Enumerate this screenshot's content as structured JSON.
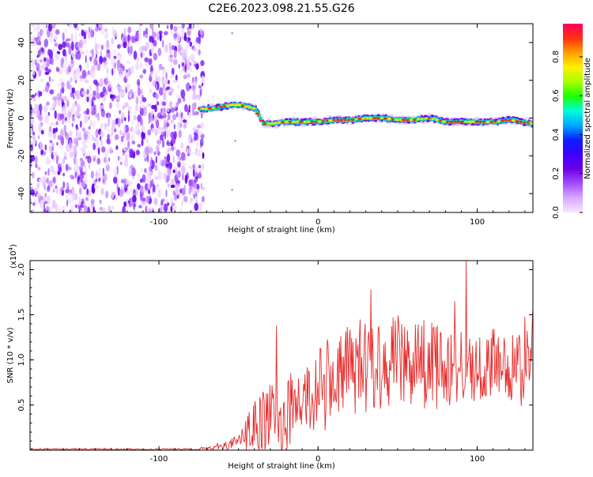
{
  "title": "C2E6.2023.098.21.55.G26",
  "colors": {
    "signal": "#7a1fe6",
    "snr_line": "#e82a2a",
    "colormap": [
      "#f7e6ff",
      "#d9a8ff",
      "#a24dff",
      "#6b00e8",
      "#3f00ff",
      "#0a20ff",
      "#00a8ff",
      "#00ffd8",
      "#1aff00",
      "#a8ff00",
      "#fff000",
      "#ffa000",
      "#ff3010",
      "#ff0060"
    ]
  },
  "chart_data": [
    {
      "type": "heatmap",
      "xlabel": "Height of straight line (km)",
      "ylabel": "Frequency (Hz)",
      "xlim": [
        -181,
        135
      ],
      "ylim": [
        -50,
        50
      ],
      "xticks": [
        -100,
        0,
        100
      ],
      "yticks": [
        -40,
        -20,
        0,
        20,
        40
      ],
      "noise_region_x": [
        -181,
        -72
      ],
      "signal_track": {
        "x": [
          -75,
          -70,
          -65,
          -60,
          -55,
          -50,
          -45,
          -40,
          -38,
          -35,
          -30,
          -20,
          -10,
          0,
          10,
          20,
          30,
          40,
          50,
          60,
          70,
          80,
          90,
          100,
          110,
          120,
          135
        ],
        "freq": [
          5,
          5,
          5.5,
          6,
          7,
          7,
          6,
          5,
          2,
          -3,
          -3,
          -2,
          -2,
          -2,
          -1,
          -1,
          0,
          0,
          -1,
          -1,
          0,
          -2,
          -2,
          -2,
          -2,
          -1,
          -3
        ]
      },
      "colorbar": {
        "label": "Normalized spectral amplitude",
        "ticks": [
          "0.0",
          "0.2",
          "0.4",
          "0.6",
          "0.8"
        ],
        "range": [
          0,
          0.97
        ]
      }
    },
    {
      "type": "line",
      "xlabel": "Height of straight line (km)",
      "ylabel": "SNR (10 * v/v)",
      "y_multiplier": "(x10",
      "y_multiplier_exp": "4",
      "y_multiplier_close": ")",
      "xlim": [
        -181,
        135
      ],
      "ylim": [
        0,
        2.1
      ],
      "xticks": [
        -100,
        0,
        100
      ],
      "yticks": [
        "0.5",
        "1.0",
        "1.5",
        "2.0"
      ],
      "envelope": {
        "x": [
          -181,
          -80,
          -70,
          -60,
          -55,
          -50,
          -45,
          -40,
          -35,
          -30,
          -25,
          -20,
          -10,
          0,
          10,
          20,
          30,
          40,
          50,
          60,
          70,
          80,
          90,
          100,
          110,
          120,
          135
        ],
        "mean": [
          0.01,
          0.01,
          0.02,
          0.05,
          0.07,
          0.09,
          0.18,
          0.25,
          0.3,
          0.36,
          0.3,
          0.4,
          0.55,
          0.65,
          0.8,
          0.9,
          0.95,
          1.0,
          1.0,
          0.98,
          0.95,
          0.9,
          0.92,
          0.92,
          0.95,
          0.92,
          0.9
        ],
        "spread": [
          0.01,
          0.01,
          0.02,
          0.04,
          0.06,
          0.08,
          0.2,
          0.3,
          0.35,
          0.45,
          0.35,
          0.4,
          0.45,
          0.5,
          0.5,
          0.5,
          0.55,
          0.55,
          0.5,
          0.5,
          0.5,
          0.45,
          0.45,
          0.4,
          0.4,
          0.4,
          0.45
        ]
      },
      "peaks": [
        {
          "x": -26,
          "y": 1.38
        },
        {
          "x": 33,
          "y": 1.78
        },
        {
          "x": 86,
          "y": 1.65
        },
        {
          "x": 93,
          "y": 2.1
        },
        {
          "x": 130,
          "y": 1.48
        },
        {
          "x": 135,
          "y": 1.55
        }
      ]
    }
  ]
}
